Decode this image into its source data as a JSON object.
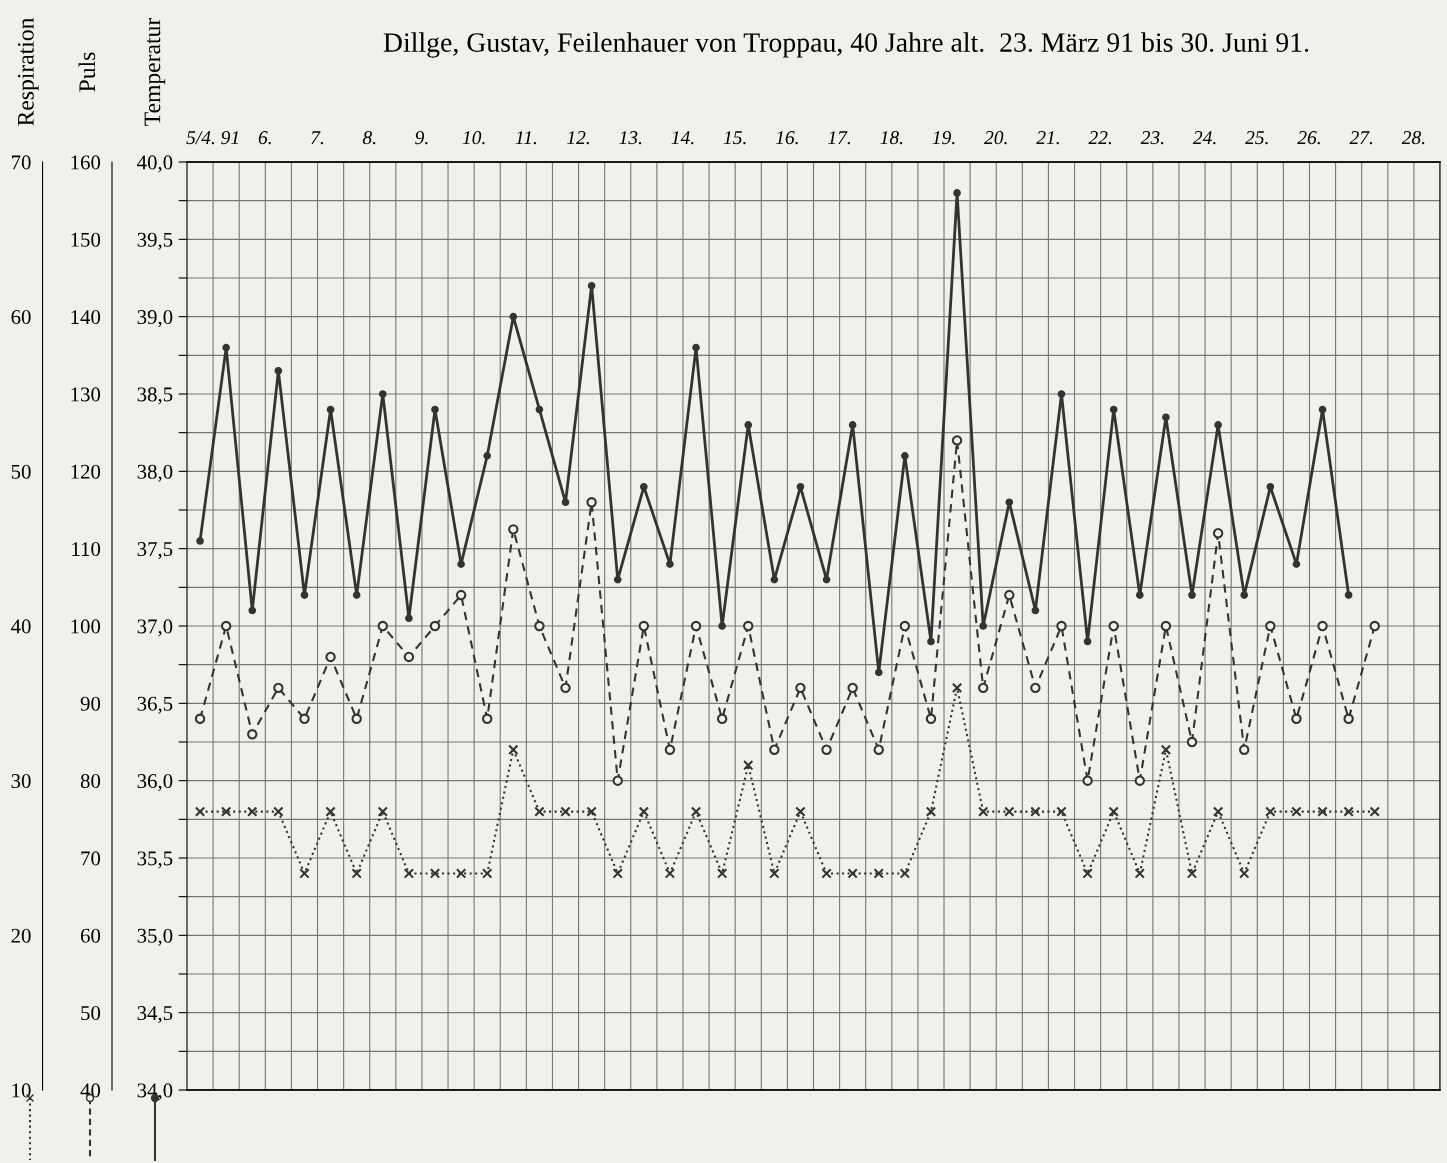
{
  "chart_data": {
    "type": "line",
    "title": "Dillge, Gustav, Feilenhauer von Troppau, 40 Jahre alt.  23. März 91 bis 30. Juni 91.",
    "ylabel": "Temperatur",
    "y2label": "Puls",
    "y3label": "Respiration",
    "categories": [
      "5/4. 91",
      null,
      "6.",
      null,
      "7.",
      null,
      "8.",
      null,
      "9.",
      null,
      "10.",
      null,
      "11.",
      null,
      "12.",
      null,
      "13.",
      null,
      "14.",
      null,
      "15.",
      null,
      "16.",
      null,
      "17.",
      null,
      "18.",
      null,
      "19.",
      null,
      "20.",
      null,
      "21.",
      null,
      "22.",
      null,
      "23.",
      null,
      "24.",
      null,
      "25.",
      null,
      "26.",
      null,
      "27.",
      null,
      "28.",
      null
    ],
    "ylim": [
      34.0,
      40.0
    ],
    "yticks": [
      {
        "value": 40.0,
        "label": "40,0"
      },
      {
        "value": 39.75,
        "label": null
      },
      {
        "value": 39.5,
        "label": "39,5"
      },
      {
        "value": 39.25,
        "label": null
      },
      {
        "value": 39.0,
        "label": "39,0"
      },
      {
        "value": 38.75,
        "label": null
      },
      {
        "value": 38.5,
        "label": "38,5"
      },
      {
        "value": 38.25,
        "label": null
      },
      {
        "value": 38.0,
        "label": "38,0"
      },
      {
        "value": 37.75,
        "label": null
      },
      {
        "value": 37.5,
        "label": "37,5"
      },
      {
        "value": 37.25,
        "label": null
      },
      {
        "value": 37.0,
        "label": "37,0"
      },
      {
        "value": 36.75,
        "label": null
      },
      {
        "value": 36.5,
        "label": "36,5"
      },
      {
        "value": 36.25,
        "label": null
      },
      {
        "value": 36.0,
        "label": "36,0"
      },
      {
        "value": 35.75,
        "label": null
      },
      {
        "value": 35.5,
        "label": "35,5"
      },
      {
        "value": 35.25,
        "label": null
      },
      {
        "value": 35.0,
        "label": "35,0"
      },
      {
        "value": 34.75,
        "label": null
      },
      {
        "value": 34.5,
        "label": "34,5"
      },
      {
        "value": 34.25,
        "label": null
      },
      {
        "value": 34.0,
        "label": "34,0"
      }
    ],
    "y2lim": [
      40,
      160
    ],
    "y2ticks": [
      160,
      150,
      140,
      130,
      120,
      110,
      100,
      90,
      80,
      70,
      60,
      50,
      40
    ],
    "y3lim": [
      10,
      70
    ],
    "y3ticks": [
      70,
      60,
      50,
      40,
      30,
      20,
      10
    ],
    "grid": true,
    "series": [
      {
        "color": "#333333",
        "marker": "circle",
        "line_style": "solid",
        "values": [
          37.55,
          38.8,
          37.1,
          38.65,
          37.2,
          38.4,
          37.2,
          38.5,
          37.05,
          38.4,
          37.4,
          38.1,
          39.0,
          38.4,
          37.8,
          39.2,
          37.3,
          37.9,
          37.4,
          38.8,
          37.0,
          38.3,
          37.3,
          37.9,
          37.3,
          38.3,
          36.7,
          38.1,
          36.9,
          39.8,
          37.0,
          37.8,
          37.1,
          38.5,
          36.9,
          38.4,
          37.2,
          38.35,
          37.2,
          38.3,
          37.2,
          37.9,
          37.4,
          38.4,
          37.2,
          null,
          null,
          null
        ]
      },
      {
        "color": "#333333",
        "marker": "circle",
        "line_style": "dashed",
        "axis": "y2",
        "values": [
          88,
          100,
          86,
          92,
          88,
          96,
          88,
          100,
          96,
          100,
          104,
          88,
          112.5,
          100,
          92,
          116,
          80,
          100,
          84,
          100,
          88,
          100,
          84,
          92,
          84,
          92,
          84,
          100,
          88,
          124,
          92,
          104,
          92,
          100,
          80,
          100,
          80,
          100,
          85,
          112,
          84,
          100,
          88,
          100,
          88,
          100,
          null,
          null
        ]
      },
      {
        "color": "#333333",
        "marker": "cross",
        "line_style": "dotted",
        "axis": "y3",
        "values": [
          28,
          28,
          28,
          28,
          24,
          28,
          24,
          28,
          24,
          24,
          24,
          24,
          32,
          28,
          28,
          28,
          24,
          28,
          24,
          28,
          24,
          31,
          24,
          28,
          24,
          24,
          24,
          24,
          28,
          36,
          28,
          28,
          28,
          28,
          24,
          28,
          24,
          32,
          24,
          28,
          24,
          28,
          28,
          28,
          28,
          28,
          null,
          null
        ]
      }
    ]
  }
}
